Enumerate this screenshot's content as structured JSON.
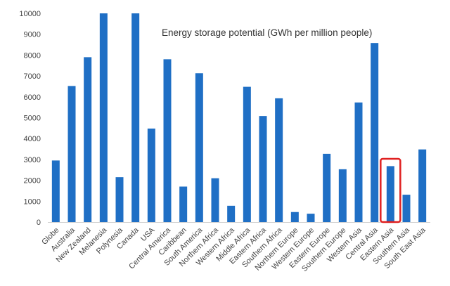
{
  "chart_data": {
    "type": "bar",
    "title": "Energy storage potential (GWh per million people)",
    "xlabel": "",
    "ylabel": "",
    "ylim": [
      0,
      10000
    ],
    "yticks": [
      0,
      1000,
      2000,
      3000,
      4000,
      5000,
      6000,
      7000,
      8000,
      9000,
      10000
    ],
    "grid": false,
    "legend": "none",
    "bar_color": "#1f6fc5",
    "highlight_color": "#e02020",
    "highlight_category": "Eastern Asia",
    "categories": [
      "Globe",
      "Australia",
      "New Zealand",
      "Melanesia",
      "Polynesia",
      "Canada",
      "USA",
      "Central America",
      "Caribbean",
      "South America",
      "Northern Africa",
      "Western Africa",
      "Middle Africa",
      "Eastern Africa",
      "Southern Africa",
      "Northern Europe",
      "Western Europe",
      "Eastern Europe",
      "Southern Europe",
      "Western Asia",
      "Central Asia",
      "Eastern Asia",
      "Southern Asia",
      "South East Asia"
    ],
    "values": [
      2950,
      6520,
      7900,
      10000,
      2150,
      10000,
      4480,
      7800,
      1700,
      7130,
      2100,
      780,
      6480,
      5080,
      5930,
      480,
      400,
      3270,
      2530,
      5730,
      8580,
      2680,
      1310,
      3480
    ]
  }
}
